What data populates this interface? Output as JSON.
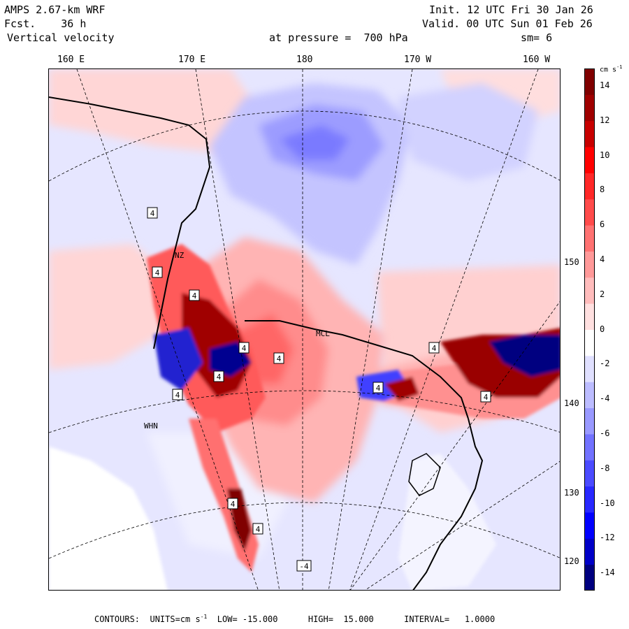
{
  "header": {
    "model": "AMPS 2.67-km WRF",
    "forecast": "Fcst.    36 h",
    "field": "Vertical velocity",
    "level": "at pressure =  700 hPa",
    "init": "Init. 12 UTC Fri 30 Jan 26",
    "valid": "Valid. 00 UTC Sun 01 Feb 26",
    "smoothing": "sm= 6"
  },
  "lon_labels": [
    "160 E",
    "170 E",
    "180",
    "170 W",
    "160 W"
  ],
  "lat_labels": [
    "150 W",
    "140 W",
    "130 W",
    "120 W"
  ],
  "station_labels": [
    "NZ",
    "MCL",
    "WHN"
  ],
  "contour_marks": [
    "4",
    "4",
    "4",
    "4",
    "4",
    "4",
    "4",
    "4",
    "4",
    "4",
    "4",
    "4",
    "-4"
  ],
  "colorbar": {
    "unit": "cm s",
    "unit_exp": "-1",
    "ticks": [
      "14",
      "12",
      "10",
      "8",
      "6",
      "4",
      "2",
      "0",
      "-2",
      "-4",
      "-6",
      "-8",
      "-10",
      "-12",
      "-14"
    ],
    "colors": [
      "#000080",
      "#0000c8",
      "#0000ff",
      "#2828ff",
      "#4b4bff",
      "#7272ff",
      "#9999ff",
      "#bcbcff",
      "#e0e0ff",
      "#ffffff",
      "#ffe0e0",
      "#ffbcbc",
      "#ff9999",
      "#ff7272",
      "#ff4b4b",
      "#ff2828",
      "#ff0000",
      "#c80000",
      "#a00000",
      "#800000"
    ]
  },
  "footer": {
    "label": "CONTOURS:  UNITS=cm s",
    "exp": "-1",
    "rest": "  LOW= -15.000      HIGH=  15.000      INTERVAL=   1.0000"
  },
  "colors": {
    "background": "#e8e8ff",
    "ice": "#ffffff",
    "red_light": "#ffc8c8",
    "red_mid": "#ff8a8a",
    "red_dark": "#8b0000",
    "blue_light": "#c8c8ff",
    "blue_mid": "#7a7aff",
    "blue_dark": "#0000c0"
  }
}
